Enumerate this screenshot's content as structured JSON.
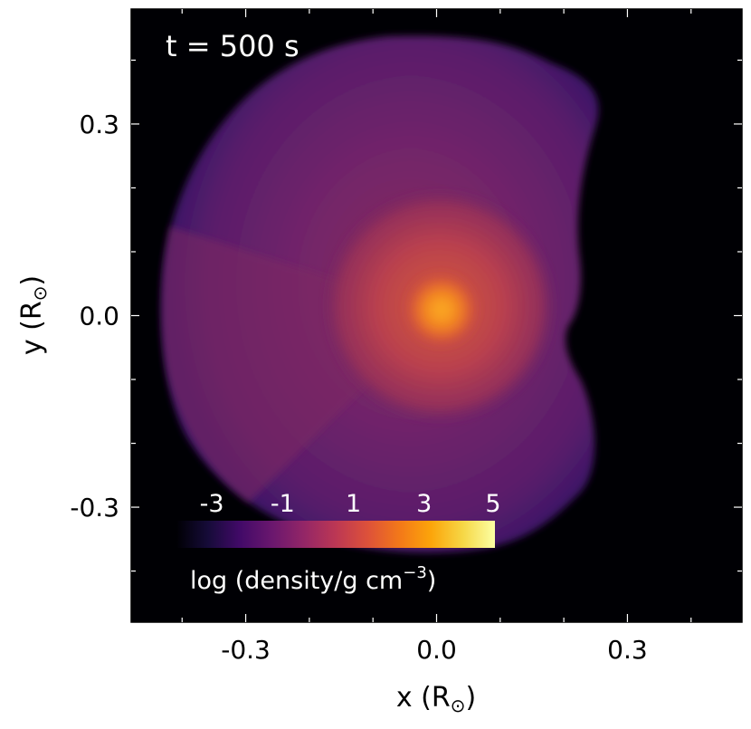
{
  "chart_data": {
    "type": "heatmap",
    "time_label": "t = 500 s",
    "x": {
      "label": "x (R",
      "label_sub": "⊙",
      "label_close": ")",
      "lim": [
        -0.48,
        0.48
      ],
      "ticks": [
        -0.3,
        0.0,
        0.3
      ],
      "tick_labels": [
        "-0.3",
        "0.0",
        "0.3"
      ]
    },
    "y": {
      "label": "y (R",
      "label_sub": "⊙",
      "label_close": ")",
      "lim": [
        -0.48,
        0.48
      ],
      "ticks": [
        -0.3,
        0.0,
        0.3
      ],
      "tick_labels": [
        "-0.3",
        "0.0",
        "0.3"
      ]
    },
    "colorbar": {
      "title": "log (density/g cm",
      "title_sup": "−3",
      "title_close": ")",
      "range": [
        -4,
        5
      ],
      "ticks": [
        -3,
        -1,
        1,
        3,
        5
      ],
      "tick_labels": [
        "-3",
        "-1",
        "1",
        "3",
        "5"
      ],
      "colormap": "inferno",
      "placement": "lower-left"
    },
    "background_color": "#000004",
    "grid": false
  }
}
